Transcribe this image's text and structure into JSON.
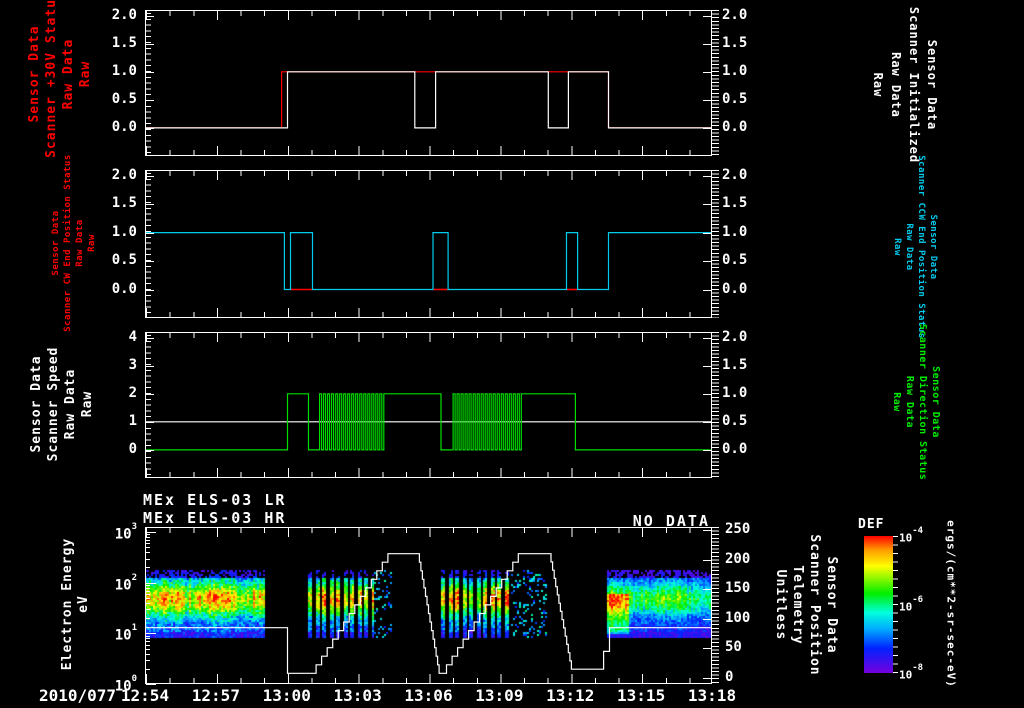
{
  "titles": {
    "lr": "MEx ELS-03 LR",
    "hr": "MEx ELS-03 HR",
    "no_data": "NO DATA"
  },
  "labels": {
    "p1_left": {
      "color": "#ff0000",
      "lines": [
        "Sensor Data",
        "Scanner +30V Status",
        "Raw Data",
        "Raw"
      ]
    },
    "p1_right": {
      "color": "#ffffff",
      "lines": [
        "Sensor Data",
        "Scanner Initialized",
        "Raw Data",
        "Raw"
      ]
    },
    "p2_left": {
      "color": "#ff0000",
      "lines": [
        "Sensor Data",
        "Scanner CW End Position Status",
        "Raw Data",
        "Raw"
      ]
    },
    "p2_right": {
      "color": "#00ccee",
      "lines": [
        "Sensor Data",
        "Scanner CCW End Position Status",
        "Raw Data",
        "Raw"
      ]
    },
    "p3_left": {
      "color": "#ffffff",
      "lines": [
        "Sensor Data",
        "Scanner Speed",
        "Raw Data",
        "Raw"
      ]
    },
    "p3_right": {
      "color": "#00ee00",
      "lines": [
        "Sensor Data",
        "Scanner Direction Status",
        "Raw Data",
        "Raw"
      ]
    },
    "p4_left": {
      "color": "#ffffff",
      "lines": [
        "Electron Energy",
        "eV"
      ]
    },
    "p4_right": {
      "color": "#ffffff",
      "lines": [
        "Sensor Data",
        "Scanner Position",
        "Telemetry",
        "Unitless"
      ]
    }
  },
  "x_axis": {
    "date": "2010/077",
    "tick_labels": [
      "12:54",
      "12:57",
      "13:00",
      "13:03",
      "13:06",
      "13:09",
      "13:12",
      "13:15",
      "13:18"
    ],
    "minutes_span": 24,
    "major_step_min": 3,
    "minor_step_min": 1
  },
  "colorbar": {
    "title": "DEF",
    "unit": "ergs/(cm**2-sr-sec-eV)",
    "tick_exponents": [
      -4,
      -6,
      -8
    ],
    "stops": [
      "#ff0000",
      "#ff9900",
      "#ffff00",
      "#00ee00",
      "#00ffdd",
      "#00aaff",
      "#0022ff",
      "#7700dd"
    ],
    "stop_pos": [
      0,
      0.1,
      0.22,
      0.42,
      0.56,
      0.68,
      0.82,
      1
    ]
  },
  "chart_data": [
    {
      "type": "line",
      "panel": 1,
      "y_range": [
        -0.5,
        2.1
      ],
      "y_ticks": [
        {
          "v": 2,
          "label": "2.0"
        },
        {
          "v": 1.5,
          "label": "1.5"
        },
        {
          "v": 1,
          "label": "1.0"
        },
        {
          "v": 0.5,
          "label": "0.5"
        },
        {
          "v": 0,
          "label": "0.0"
        }
      ],
      "series": [
        {
          "name": "scanner-plus30v-status",
          "color": "#ff0000",
          "points": [
            [
              0,
              0
            ],
            [
              5.78,
              0
            ],
            [
              5.78,
              1
            ],
            [
              19.62,
              1
            ],
            [
              19.62,
              0
            ],
            [
              24,
              0
            ]
          ]
        },
        {
          "name": "scanner-initialized",
          "color": "#ffffff",
          "points": [
            [
              0,
              0
            ],
            [
              6.03,
              0
            ],
            [
              6.03,
              1
            ],
            [
              11.42,
              1
            ],
            [
              11.42,
              0
            ],
            [
              12.3,
              0
            ],
            [
              12.3,
              1
            ],
            [
              17.07,
              1
            ],
            [
              17.07,
              0
            ],
            [
              17.92,
              0
            ],
            [
              17.92,
              1
            ],
            [
              19.62,
              1
            ],
            [
              19.62,
              0
            ],
            [
              24,
              0
            ]
          ]
        }
      ]
    },
    {
      "type": "line",
      "panel": 2,
      "y_range": [
        -0.5,
        2.1
      ],
      "y_ticks": [
        {
          "v": 2,
          "label": "2.0"
        },
        {
          "v": 1.5,
          "label": "1.5"
        },
        {
          "v": 1,
          "label": "1.0"
        },
        {
          "v": 0.5,
          "label": "0.5"
        },
        {
          "v": 0,
          "label": "0.0"
        }
      ],
      "red_zero_segments": [
        [
          6.16,
          7.09
        ],
        [
          12.19,
          12.83
        ],
        [
          17.84,
          18.31
        ]
      ],
      "series": [
        {
          "name": "scanner-ccw-end-position-status",
          "color": "#00ccee",
          "points": [
            [
              0,
              1
            ],
            [
              5.9,
              1
            ],
            [
              5.9,
              0
            ],
            [
              6.16,
              0
            ],
            [
              6.16,
              1
            ],
            [
              7.09,
              1
            ],
            [
              7.09,
              0
            ],
            [
              12.19,
              0
            ],
            [
              12.19,
              1
            ],
            [
              12.83,
              1
            ],
            [
              12.83,
              0
            ],
            [
              17.84,
              0
            ],
            [
              17.84,
              1
            ],
            [
              18.31,
              1
            ],
            [
              18.31,
              0
            ],
            [
              19.62,
              0
            ],
            [
              19.62,
              1
            ],
            [
              24,
              1
            ]
          ]
        }
      ]
    },
    {
      "type": "line",
      "panel": 3,
      "y_range_left": [
        -1,
        4.2
      ],
      "y_range_right": [
        -0.5,
        2.1
      ],
      "y_ticks_left": [
        {
          "v": 4,
          "label": "4"
        },
        {
          "v": 3,
          "label": "3"
        },
        {
          "v": 2,
          "label": "2"
        },
        {
          "v": 1,
          "label": "1"
        },
        {
          "v": 0,
          "label": "0"
        }
      ],
      "y_ticks_right": [
        {
          "v": 2,
          "label": "2.0"
        },
        {
          "v": 1.5,
          "label": "1.5"
        },
        {
          "v": 1,
          "label": "1.0"
        },
        {
          "v": 0.5,
          "label": "0.5"
        },
        {
          "v": 0,
          "label": "0.0"
        }
      ],
      "white_speed_constant": 1,
      "green_direction_intervals": [
        {
          "t0": 0,
          "t1": 6.03,
          "v": 0
        },
        {
          "t0": 6.03,
          "t1": 6.92,
          "v": 1
        },
        {
          "t0": 6.92,
          "t1": 7.39,
          "v": 0
        },
        {
          "t0": 7.39,
          "t1": 10.19,
          "v": "osc"
        },
        {
          "t0": 10.19,
          "t1": 12.53,
          "v": 1
        },
        {
          "t0": 12.53,
          "t1": 13.04,
          "v": 0
        },
        {
          "t0": 13.04,
          "t1": 15.93,
          "v": "osc"
        },
        {
          "t0": 15.93,
          "t1": 18.22,
          "v": 1
        },
        {
          "t0": 18.22,
          "t1": 24,
          "v": 0
        }
      ],
      "osc_period_min": 0.17,
      "colors": {
        "speed": "#ffffff",
        "direction": "#00dd00"
      }
    },
    {
      "type": "heatmap",
      "panel": 4,
      "y_left_log_exponents": [
        3,
        2,
        1,
        0
      ],
      "y_right_ticks": [
        {
          "v": 250,
          "label": "250"
        },
        {
          "v": 200,
          "label": "200"
        },
        {
          "v": 150,
          "label": "150"
        },
        {
          "v": 100,
          "label": "100"
        },
        {
          "v": 50,
          "label": "50"
        },
        {
          "v": 0,
          "label": "0"
        }
      ],
      "y_right_range": [
        -10,
        255
      ],
      "energy_band_ev": [
        9,
        180
      ],
      "spectrogram_blocks": [
        {
          "t0": 0,
          "t1": 5.1,
          "style": "dense",
          "tone": "warm"
        },
        {
          "t0": 6.88,
          "t1": 9.69,
          "style": "stripes",
          "tone": "warm"
        },
        {
          "t0": 9.69,
          "t1": 10.4,
          "style": "sparse",
          "tone": "warm"
        },
        {
          "t0": 12.53,
          "t1": 15.5,
          "style": "stripes",
          "tone": "warm"
        },
        {
          "t0": 15.5,
          "t1": 17.0,
          "style": "sparse",
          "tone": "warm"
        },
        {
          "t0": 19.54,
          "t1": 24,
          "style": "dense",
          "tone": "cool"
        }
      ],
      "position_trace": {
        "name": "scanner-position-telemetry",
        "color": "#ffffff",
        "points": [
          [
            0,
            85
          ],
          [
            6.03,
            85
          ],
          [
            6.03,
            8
          ],
          [
            7.01,
            8
          ],
          [
            10.28,
            210,
            "stair"
          ],
          [
            11.55,
            210
          ],
          [
            12.45,
            8,
            "stair"
          ],
          [
            12.53,
            8
          ],
          [
            15.8,
            210,
            "stair"
          ],
          [
            17.12,
            210
          ],
          [
            18.05,
            15,
            "stair"
          ],
          [
            19.41,
            15
          ],
          [
            19.41,
            45
          ],
          [
            19.66,
            45
          ],
          [
            19.66,
            85
          ],
          [
            24,
            85
          ]
        ]
      }
    }
  ]
}
